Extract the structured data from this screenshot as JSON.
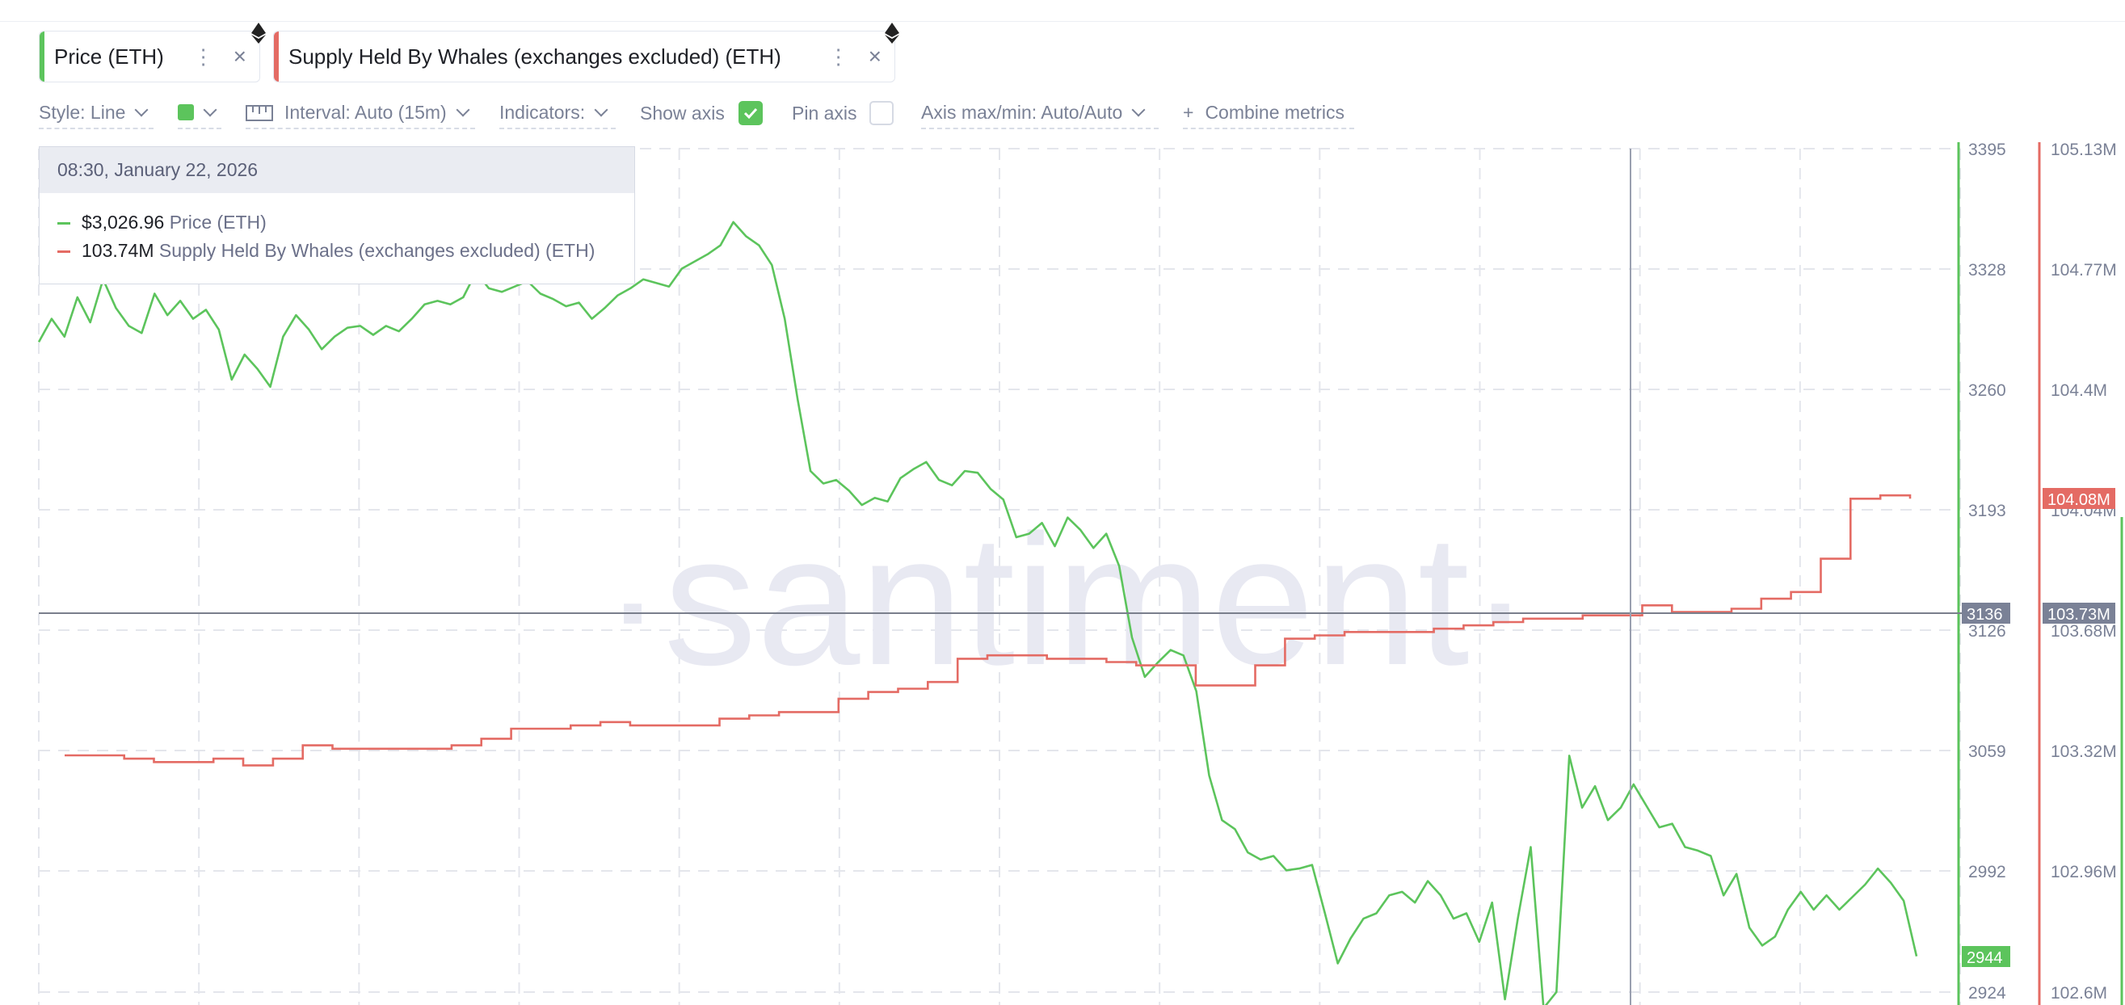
{
  "tabs": [
    {
      "label": "Price (ETH)",
      "color": "#5cc45c"
    },
    {
      "label": "Supply Held By Whales (exchanges excluded) (ETH)",
      "color": "#e46b64"
    }
  ],
  "toolbar": {
    "style": "Style: Line",
    "interval": "Interval: Auto (15m)",
    "indicators": "Indicators:",
    "show_axis": "Show axis",
    "pin_axis": "Pin axis",
    "axis_maxmin": "Axis max/min: Auto/Auto",
    "combine_plus": "+",
    "combine": "Combine metrics"
  },
  "tooltip": {
    "date": "08:30, January 22, 2026",
    "price_value": "$3,026.96",
    "price_label": "Price (ETH)",
    "whale_value": "103.74M",
    "whale_label": "Supply Held By Whales (exchanges excluded) (ETH)"
  },
  "watermark": "·santiment·",
  "chart_data": {
    "type": "line",
    "price_axis_ticks": [
      "3395",
      "3328",
      "3260",
      "3193",
      "3126",
      "3059",
      "2992",
      "2924"
    ],
    "supply_axis_ticks": [
      "105.13M",
      "104.77M",
      "104.4M",
      "104.04M",
      "103.68M",
      "103.32M",
      "102.96M",
      "102.6M"
    ],
    "price_axis_range": [
      2924,
      3395
    ],
    "supply_axis_range": [
      102.6,
      105.13
    ],
    "crosshair": {
      "price_label": "3136",
      "supply_label": "103.73M"
    },
    "last_value_labels": {
      "price": "2944",
      "supply": "104.08M"
    },
    "grid": true,
    "series": [
      {
        "name": "Price (ETH)",
        "color": "#5cc45c",
        "axis": "price",
        "values": [
          3287,
          3300,
          3290,
          3312,
          3298,
          3322,
          3306,
          3296,
          3292,
          3314,
          3302,
          3310,
          3300,
          3305,
          3294,
          3266,
          3280,
          3272,
          3262,
          3290,
          3302,
          3294,
          3283,
          3290,
          3295,
          3296,
          3291,
          3296,
          3293,
          3300,
          3308,
          3310,
          3308,
          3312,
          3326,
          3317,
          3315,
          3318,
          3321,
          3314,
          3311,
          3307,
          3309,
          3300,
          3306,
          3313,
          3317,
          3322,
          3320,
          3318,
          3328,
          3332,
          3336,
          3341,
          3354,
          3346,
          3341,
          3330,
          3300,
          3255,
          3215,
          3208,
          3210,
          3204,
          3196,
          3200,
          3198,
          3211,
          3216,
          3220,
          3210,
          3207,
          3215,
          3214,
          3205,
          3199,
          3178,
          3180,
          3186,
          3173,
          3189,
          3182,
          3172,
          3180,
          3162,
          3122,
          3100,
          3108,
          3115,
          3112,
          3092,
          3045,
          3020,
          3015,
          3002,
          2998,
          3000,
          2992,
          2993,
          2995,
          2968,
          2940,
          2954,
          2965,
          2968,
          2978,
          2980,
          2974,
          2986,
          2978,
          2965,
          2968,
          2952,
          2974,
          2920,
          2965,
          3005,
          2915,
          2924,
          3056,
          3027,
          3039,
          3020,
          3027,
          3040,
          3028,
          3016,
          3018,
          3005,
          3003,
          3000,
          2978,
          2990,
          2960,
          2950,
          2955,
          2970,
          2980,
          2970,
          2978,
          2970,
          2977,
          2984,
          2993,
          2985,
          2975,
          2944
        ]
      },
      {
        "name": "Supply Held By Whales (exchanges excluded) (ETH)",
        "color": "#e46b64",
        "axis": "supply",
        "values": [
          103.31,
          103.31,
          103.3,
          103.29,
          103.29,
          103.3,
          103.28,
          103.3,
          103.34,
          103.33,
          103.33,
          103.33,
          103.33,
          103.34,
          103.36,
          103.39,
          103.39,
          103.4,
          103.41,
          103.4,
          103.4,
          103.4,
          103.42,
          103.43,
          103.44,
          103.44,
          103.48,
          103.5,
          103.51,
          103.53,
          103.6,
          103.61,
          103.61,
          103.6,
          103.6,
          103.59,
          103.58,
          103.58,
          103.52,
          103.52,
          103.58,
          103.66,
          103.67,
          103.68,
          103.68,
          103.68,
          103.69,
          103.7,
          103.71,
          103.72,
          103.72,
          103.73,
          103.73,
          103.76,
          103.74,
          103.74,
          103.75,
          103.78,
          103.8,
          103.9,
          104.08,
          104.09,
          104.08
        ]
      }
    ]
  }
}
